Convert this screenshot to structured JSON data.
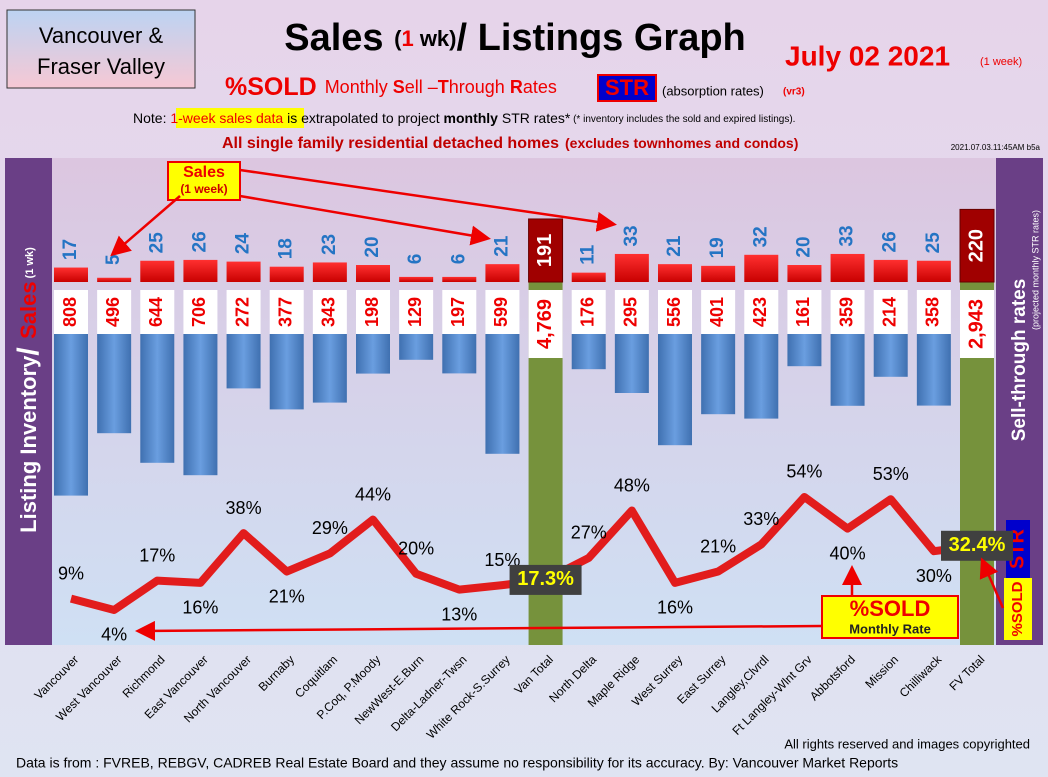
{
  "chart_data": {
    "type": "bar",
    "region_box": [
      "Vancouver &",
      "Fraser Valley"
    ],
    "title": [
      "Sales ",
      "(",
      "1",
      " wk)",
      "/ Listings Graph"
    ],
    "date": "July 02  2021",
    "date_note": "(1 week)",
    "subtitle": [
      "%SOLD",
      "Monthly ",
      "S",
      "ell –",
      "T",
      "hrough ",
      "R",
      "ates",
      "STR",
      "(absorption rates)",
      "(vr3)"
    ],
    "note": [
      "Note: ",
      "1-week sales data",
      " is extrapolated to project ",
      "monthly",
      " STR rates*",
      " (* inventory includes the sold and expired listings)."
    ],
    "scope": [
      "All single family residential detached homes",
      "(excludes townhomes and condos)"
    ],
    "timestamp": "2021.07.03.11:45AM b5a",
    "y_label": [
      "Listing Inventory",
      "/ ",
      "Sales",
      " (1 wk)"
    ],
    "y2_label": [
      "Sell-through rates",
      "(projected monthly STR rates)",
      "STR",
      "%SOLD"
    ],
    "callouts": {
      "sales": [
        "Sales",
        "(1 week)"
      ],
      "sold": [
        "%SOLD",
        "Monthly Rate"
      ]
    },
    "footer": [
      "All rights reserved and  images copyrighted",
      "Data is from : FVREB, REBGV, CADREB Real Estate Board and they assume no responsibility for its accuracy. By: Vancouver Market Reports"
    ],
    "categories": [
      "Vancouver",
      "West Vancouver",
      "Richmond",
      "East Vancouver",
      "North Vancouver",
      "Burnaby",
      "Coquitlam",
      "P.Coq, P.Moody",
      "NewWest-E.Burn",
      "Delta-Ladner-Twsn",
      "White Rock-S.Surrey",
      "Van Total",
      "North Delta",
      "Maple Ridge",
      "West Surrey",
      "East Surrey",
      "Langley,Clvrdl",
      "Ft Langley-Wlnt Grv",
      "Abbotsford",
      "Mission",
      "Chilliwack",
      "FV Total"
    ],
    "total_color": "#76923c",
    "series": [
      {
        "name": "Sales",
        "color": "#ff0000",
        "values": [
          17,
          5,
          25,
          26,
          24,
          18,
          23,
          20,
          6,
          6,
          21,
          191,
          11,
          33,
          21,
          19,
          32,
          20,
          33,
          26,
          25,
          220
        ]
      },
      {
        "name": "Listing Inventory",
        "color": "#4f81bd",
        "values": [
          808,
          496,
          644,
          706,
          272,
          377,
          343,
          198,
          129,
          197,
          599,
          4769,
          176,
          295,
          556,
          401,
          423,
          161,
          359,
          214,
          358,
          2943
        ],
        "value_labels": [
          "808",
          "496",
          "644",
          "706",
          "272",
          "377",
          "343",
          "198",
          "129",
          "197",
          "599",
          "4,769",
          "176",
          "295",
          "556",
          "401",
          "423",
          "161",
          "359",
          "214",
          "358",
          "2,943"
        ]
      },
      {
        "name": "%SOLD",
        "color": "#e21c1c",
        "values": [
          9,
          4,
          17,
          16,
          38,
          21,
          29,
          44,
          20,
          13,
          15,
          17.3,
          27,
          48,
          16,
          21,
          33,
          54,
          40,
          53,
          30,
          32.4
        ],
        "value_labels": [
          "9%",
          "4%",
          "17%",
          "16%",
          "38%",
          "21%",
          "29%",
          "44%",
          "20%",
          "13%",
          "15%",
          "17.3%",
          "27%",
          "48%",
          "16%",
          "21%",
          "33%",
          "54%",
          "40%",
          "53%",
          "30%",
          "32.4%"
        ]
      }
    ]
  }
}
